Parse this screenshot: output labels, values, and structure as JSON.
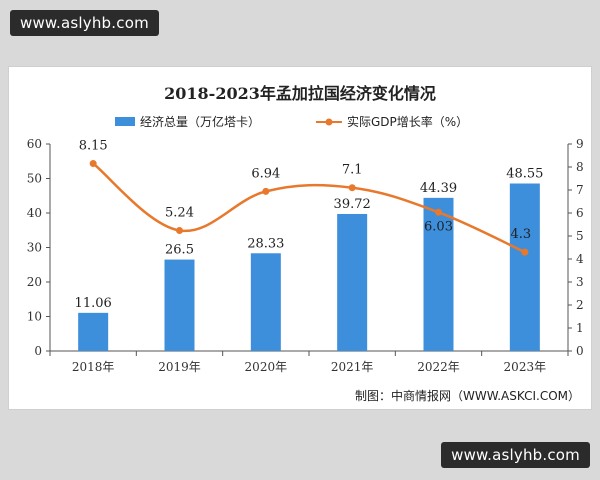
{
  "watermark_top": "www.aslyhb.com",
  "watermark_bottom": "www.aslyhb.com",
  "source_note": "制图：中商情报网（WWW.ASKCI.COM）",
  "chart_data": {
    "type": "bar",
    "title": "2018-2023年孟加拉国经济变化情况",
    "categories": [
      "2018年",
      "2019年",
      "2020年",
      "2021年",
      "2022年",
      "2023年"
    ],
    "series": [
      {
        "name": "经济总量（万亿塔卡）",
        "type": "bar",
        "axis": "left",
        "values": [
          11.06,
          26.5,
          28.33,
          39.72,
          44.39,
          48.55
        ],
        "labels": [
          "11.06",
          "26.5",
          "28.33",
          "39.72",
          "44.39",
          "48.55"
        ],
        "color": "#3d8fdc"
      },
      {
        "name": "实际GDP增长率（%）",
        "type": "line",
        "axis": "right",
        "values": [
          8.15,
          5.24,
          6.94,
          7.1,
          6.03,
          4.3
        ],
        "labels": [
          "8.15",
          "5.24",
          "6.94",
          "7.1",
          "6.03",
          "4.3"
        ],
        "color": "#e8782c"
      }
    ],
    "y_left": {
      "range": [
        0,
        60
      ],
      "ticks": [
        "0",
        "10",
        "20",
        "30",
        "40",
        "50",
        "60"
      ]
    },
    "y_right": {
      "range": [
        0,
        9
      ],
      "ticks": [
        "0",
        "1",
        "2",
        "3",
        "4",
        "5",
        "6",
        "7",
        "8",
        "9"
      ]
    },
    "legend_position": "top-center",
    "grid": false
  }
}
